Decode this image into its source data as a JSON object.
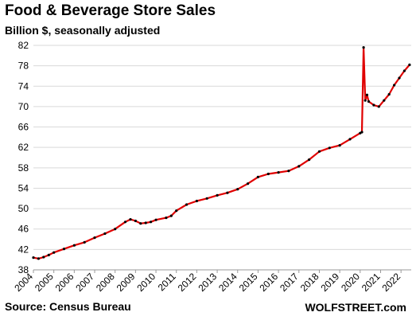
{
  "chart_data": {
    "type": "line",
    "title": "Food & Beverage Store Sales",
    "subtitle": "Billion $, seasonally adjusted",
    "xlabel": "",
    "ylabel": "",
    "ylim": [
      38,
      82
    ],
    "y_ticks": [
      38,
      42,
      46,
      50,
      54,
      58,
      62,
      66,
      70,
      74,
      78,
      82
    ],
    "x_ticks": [
      2004,
      2005,
      2006,
      2007,
      2008,
      2009,
      2010,
      2011,
      2012,
      2013,
      2014,
      2015,
      2016,
      2017,
      2018,
      2019,
      2020,
      2021,
      2022
    ],
    "grid": "horizontal",
    "line_color": "#e00000",
    "marker_color": "#000000",
    "series": [
      {
        "name": "",
        "points": [
          [
            "2004-01",
            40.4
          ],
          [
            "2004-04",
            40.2
          ],
          [
            "2004-07",
            40.5
          ],
          [
            "2004-10",
            40.9
          ],
          [
            "2005-01",
            41.4
          ],
          [
            "2005-07",
            42.1
          ],
          [
            "2006-01",
            42.8
          ],
          [
            "2006-07",
            43.4
          ],
          [
            "2007-01",
            44.3
          ],
          [
            "2007-07",
            45.1
          ],
          [
            "2008-01",
            46.0
          ],
          [
            "2008-07",
            47.4
          ],
          [
            "2008-10",
            47.9
          ],
          [
            "2009-01",
            47.6
          ],
          [
            "2009-04",
            47.1
          ],
          [
            "2009-07",
            47.2
          ],
          [
            "2009-10",
            47.4
          ],
          [
            "2010-01",
            47.8
          ],
          [
            "2010-07",
            48.2
          ],
          [
            "2010-10",
            48.6
          ],
          [
            "2011-01",
            49.6
          ],
          [
            "2011-07",
            50.8
          ],
          [
            "2012-01",
            51.5
          ],
          [
            "2012-07",
            52.0
          ],
          [
            "2013-01",
            52.6
          ],
          [
            "2013-07",
            53.1
          ],
          [
            "2014-01",
            53.8
          ],
          [
            "2014-07",
            54.9
          ],
          [
            "2015-01",
            56.2
          ],
          [
            "2015-07",
            56.8
          ],
          [
            "2016-01",
            57.1
          ],
          [
            "2016-07",
            57.4
          ],
          [
            "2017-01",
            58.3
          ],
          [
            "2017-07",
            59.6
          ],
          [
            "2018-01",
            61.2
          ],
          [
            "2018-07",
            61.9
          ],
          [
            "2019-01",
            62.4
          ],
          [
            "2019-07",
            63.6
          ],
          [
            "2020-01",
            64.8
          ],
          [
            "2020-02",
            65.0
          ],
          [
            "2020-03",
            81.6
          ],
          [
            "2020-04",
            71.2
          ],
          [
            "2020-05",
            72.3
          ],
          [
            "2020-06",
            71.0
          ],
          [
            "2020-09",
            70.3
          ],
          [
            "2020-12",
            70.0
          ],
          [
            "2021-03",
            71.2
          ],
          [
            "2021-06",
            72.4
          ],
          [
            "2021-09",
            74.2
          ],
          [
            "2021-12",
            75.6
          ],
          [
            "2022-03",
            77.0
          ],
          [
            "2022-06",
            78.2
          ]
        ]
      }
    ]
  },
  "footer": {
    "source": "Source: Census Bureau",
    "credit": "WOLFSTREET.com"
  }
}
